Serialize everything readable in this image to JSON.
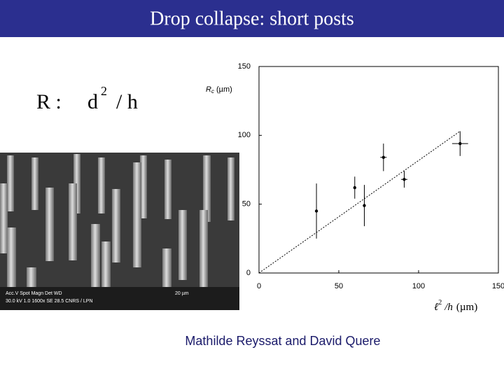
{
  "header": {
    "title": "Drop collapse: short posts"
  },
  "formula": {
    "lhs": "R :",
    "base": "d",
    "exponent": "2",
    "rest": "/ h"
  },
  "image_labels": {
    "row1": "Acc.V  Spot Magn    Det  WD",
    "row1_scale": "20 µm",
    "row2": "30.0 kV 1.0  1600x    SE  28.5 CNRS / LPN"
  },
  "chart_data": {
    "type": "scatter",
    "x_label": {
      "symbol": "ℓ",
      "superscript": "2",
      "rest": "/h",
      "unit": "(µm)"
    },
    "y_label": {
      "symbol": "R",
      "subscript": "c",
      "unit": "(µm)"
    },
    "x": [
      36,
      60,
      66,
      78,
      91,
      126
    ],
    "values": [
      45,
      62,
      49,
      84,
      68,
      94
    ],
    "yerr": [
      20,
      8,
      15,
      10,
      6,
      9
    ],
    "xerr": [
      null,
      null,
      null,
      2,
      2,
      5
    ],
    "color": "#000000",
    "fit": {
      "x": [
        0,
        126
      ],
      "values": [
        0,
        103
      ]
    },
    "xlim": [
      0,
      150
    ],
    "ylim": [
      0,
      150
    ],
    "xticks": [
      0,
      50,
      100,
      150
    ],
    "yticks": [
      0,
      50,
      100,
      150
    ]
  },
  "caption": "Mathilde Reyssat and David Quere"
}
